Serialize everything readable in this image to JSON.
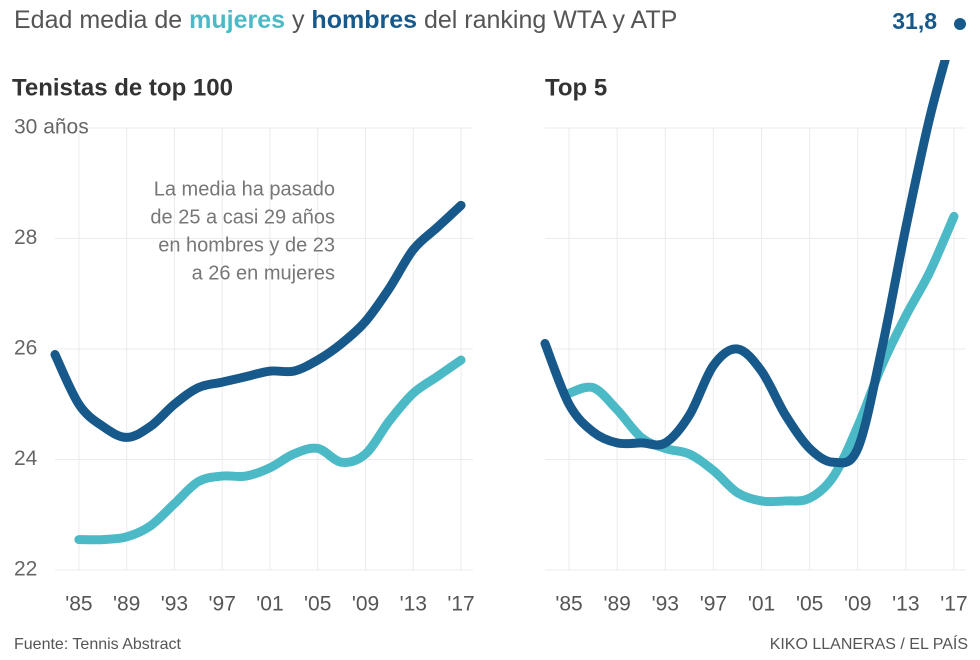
{
  "title_parts": [
    "Edad media de ",
    " y ",
    " del ranking WTA y ATP"
  ],
  "source": "Fuente: Tennis Abstract",
  "credit": "KIKO LLANERAS / EL PAÍS",
  "chart_data": [
    {
      "type": "line",
      "title": "Tenistas de top 100",
      "note": [
        "La media ha pasado",
        "de 25 a casi 29 años",
        "en hombres y de 23",
        "a 26 en mujeres"
      ],
      "x": [
        1983,
        1985,
        1987,
        1989,
        1991,
        1993,
        1995,
        1997,
        1999,
        2001,
        2003,
        2005,
        2007,
        2009,
        2011,
        2013,
        2015,
        2017
      ],
      "series": [
        {
          "name": "mujeres",
          "color": "#4cbac6",
          "values": [
            null,
            22.55,
            22.55,
            22.6,
            22.8,
            23.2,
            23.6,
            23.7,
            23.7,
            23.85,
            24.1,
            24.2,
            23.95,
            24.1,
            24.7,
            25.2,
            25.5,
            25.8
          ]
        },
        {
          "name": "hombres",
          "color": "#17598a",
          "values": [
            25.9,
            25.0,
            24.6,
            24.4,
            24.6,
            25.0,
            25.3,
            25.4,
            25.5,
            25.6,
            25.6,
            25.8,
            26.1,
            26.5,
            27.1,
            27.8,
            28.2,
            28.6
          ]
        }
      ],
      "xlim": [
        1983,
        2018
      ],
      "ylim": [
        22,
        30
      ],
      "xticks": [
        {
          "value": 1985,
          "label": "'85"
        },
        {
          "value": 1989,
          "label": "'89"
        },
        {
          "value": 1993,
          "label": "'93"
        },
        {
          "value": 1997,
          "label": "'97"
        },
        {
          "value": 2001,
          "label": "'01"
        },
        {
          "value": 2005,
          "label": "'05"
        },
        {
          "value": 2009,
          "label": "'09"
        },
        {
          "value": 2013,
          "label": "'13"
        },
        {
          "value": 2017,
          "label": "'17"
        }
      ],
      "yticks": [
        22,
        24,
        26,
        28,
        {
          "value": 30,
          "label": "30 años"
        }
      ],
      "grid": true
    },
    {
      "type": "line",
      "title": "Top 5",
      "x": [
        1983,
        1985,
        1987,
        1989,
        1991,
        1993,
        1995,
        1997,
        1999,
        2001,
        2003,
        2005,
        2007,
        2009,
        2011,
        2013,
        2015,
        2017
      ],
      "series": [
        {
          "color": "#4cbac6",
          "values": [
            null,
            25.2,
            25.3,
            24.9,
            24.4,
            24.2,
            24.1,
            23.8,
            23.4,
            23.25,
            23.25,
            23.3,
            23.7,
            24.6,
            25.7,
            26.6,
            27.4,
            28.4
          ]
        },
        {
          "color": "#17598a",
          "values": [
            26.1,
            25.0,
            24.5,
            24.3,
            24.3,
            24.3,
            24.8,
            25.7,
            26.0,
            25.6,
            24.8,
            24.2,
            23.95,
            24.2,
            26.0,
            28.2,
            30.2,
            31.8
          ]
        }
      ],
      "annotation": {
        "value": 31.8,
        "label": "31,8"
      },
      "xlim": [
        1983,
        2018
      ],
      "ylim": [
        22,
        30
      ],
      "xticks": [
        {
          "value": 1985,
          "label": "'85"
        },
        {
          "value": 1989,
          "label": "'89"
        },
        {
          "value": 1993,
          "label": "'93"
        },
        {
          "value": 1997,
          "label": "'97"
        },
        {
          "value": 2001,
          "label": "'01"
        },
        {
          "value": 2005,
          "label": "'05"
        },
        {
          "value": 2009,
          "label": "'09"
        },
        {
          "value": 2013,
          "label": "'13"
        },
        {
          "value": 2017,
          "label": "'17"
        }
      ],
      "yticks": [
        22,
        24,
        26,
        28,
        30
      ],
      "grid": true
    }
  ]
}
